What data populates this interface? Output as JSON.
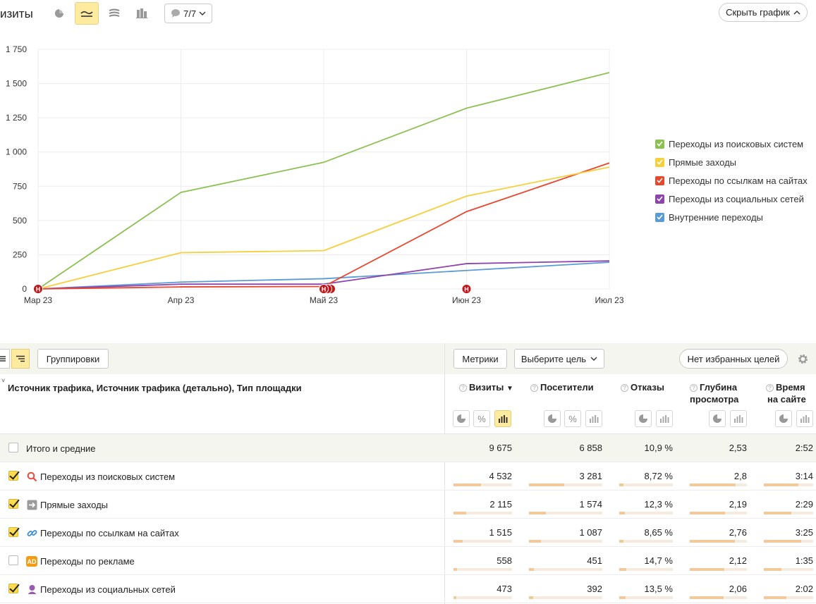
{
  "header": {
    "title": "изиты",
    "segments_label": "7/7",
    "hide_chart_label": "Скрыть график"
  },
  "chart_data": {
    "type": "line",
    "x": [
      "Мар 23",
      "Апр 23",
      "Май 23",
      "Июн 23",
      "Июл 23"
    ],
    "y_ticks": [
      "0",
      "250",
      "500",
      "750",
      "1 000",
      "1 250",
      "1 500",
      "1 750"
    ],
    "ylim": [
      0,
      1750
    ],
    "grid": true,
    "legend_position": "right",
    "series": [
      {
        "name": "Переходы из поисковых систем",
        "color": "#8cc152",
        "values": [
          0,
          705,
          925,
          1320,
          1580
        ]
      },
      {
        "name": "Прямые заходы",
        "color": "#f6cf3d",
        "values": [
          0,
          265,
          280,
          678,
          890
        ]
      },
      {
        "name": "Переходы по ссылкам на сайтах",
        "color": "#e8472d",
        "values": [
          0,
          15,
          18,
          565,
          920
        ]
      },
      {
        "name": "Переходы из социальных сетей",
        "color": "#8e44ad",
        "values": [
          0,
          35,
          35,
          185,
          205
        ]
      },
      {
        "name": "Внутренние переходы",
        "color": "#5b9bd5",
        "values": [
          0,
          50,
          75,
          135,
          195
        ]
      }
    ],
    "annotations": [
      {
        "x": "Мар 23",
        "label": "Н"
      },
      {
        "x": "Май 23",
        "label": "Н"
      },
      {
        "x": "Июн 23",
        "label": "Н"
      }
    ]
  },
  "toolbar": {
    "groupings_label": "Группировки",
    "metrics_label": "Метрики",
    "goal_label": "Выберите цель",
    "favorites_label": "Нет избранных целей"
  },
  "table": {
    "dimension_title": "Источник трафика, Источник трафика (детально), Тип площадки",
    "columns": [
      {
        "line1": "Визиты",
        "line2": "",
        "sort": "▼"
      },
      {
        "line1": "Посетители",
        "line2": "",
        "sort": ""
      },
      {
        "line1": "Отказы",
        "line2": "",
        "sort": ""
      },
      {
        "line1": "Глубина",
        "line2": "просмотра",
        "sort": ""
      },
      {
        "line1": "Время",
        "line2": "на сайте",
        "sort": ""
      }
    ],
    "total": {
      "label": "Итого и средние",
      "values": [
        "9 675",
        "6 858",
        "10,9 %",
        "2,53",
        "2:52"
      ]
    },
    "rows": [
      {
        "label": "Переходы из поисковых систем",
        "icon": "search-icon",
        "checked": true,
        "values": [
          "4 532",
          "3 281",
          "8,72 %",
          "2,8",
          "3:14"
        ],
        "fractions": [
          0.47,
          0.48,
          0.08,
          0.8,
          0.7
        ]
      },
      {
        "label": "Прямые заходы",
        "icon": "arrow-right-icon",
        "checked": true,
        "values": [
          "2 115",
          "1 574",
          "12,3 %",
          "2,19",
          "2:29"
        ],
        "fractions": [
          0.22,
          0.23,
          0.11,
          0.62,
          0.56
        ]
      },
      {
        "label": "Переходы по ссылкам на сайтах",
        "icon": "link-icon",
        "checked": true,
        "values": [
          "1 515",
          "1 087",
          "8,65 %",
          "2,76",
          "3:25"
        ],
        "fractions": [
          0.16,
          0.16,
          0.08,
          0.79,
          0.76
        ]
      },
      {
        "label": "Переходы по рекламе",
        "icon": "ad-icon",
        "checked": false,
        "values": [
          "558",
          "451",
          "14,7 %",
          "2,12",
          "1:35"
        ],
        "fractions": [
          0.06,
          0.07,
          0.13,
          0.6,
          0.35
        ]
      },
      {
        "label": "Переходы из социальных сетей",
        "icon": "social-icon",
        "checked": true,
        "values": [
          "473",
          "392",
          "13,5 %",
          "2,06",
          "2:02"
        ],
        "fractions": [
          0.05,
          0.06,
          0.12,
          0.59,
          0.45
        ]
      }
    ]
  }
}
